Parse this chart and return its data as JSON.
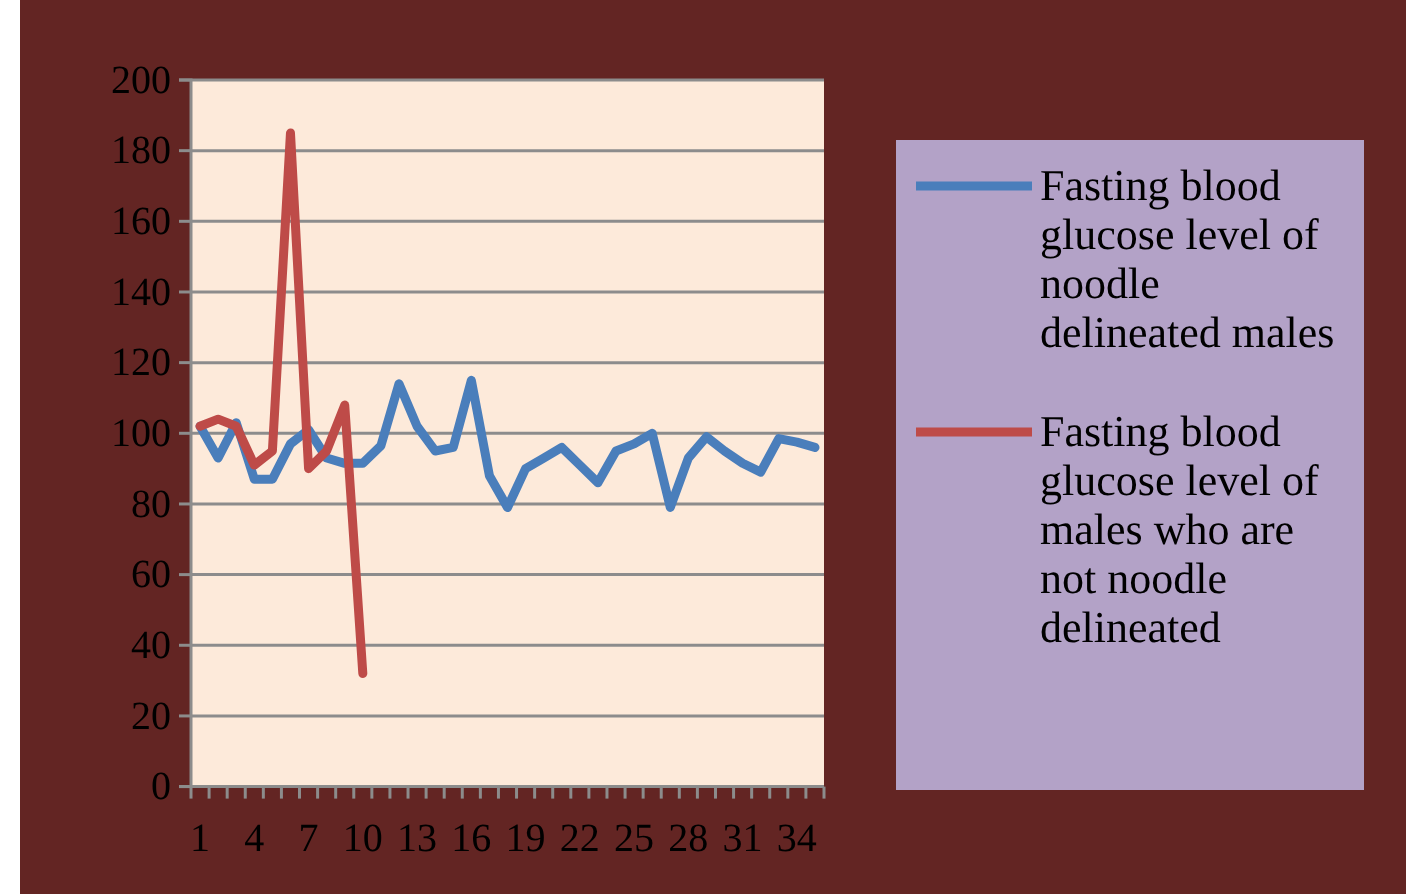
{
  "chart_data": {
    "type": "line",
    "categories": [
      "1",
      null,
      null,
      "4",
      null,
      null,
      "7",
      null,
      null,
      "10",
      null,
      null,
      "13",
      null,
      null,
      "16",
      null,
      null,
      "19",
      null,
      null,
      "22",
      null,
      null,
      "25",
      null,
      null,
      "28",
      null,
      null,
      "31",
      null,
      null,
      "34",
      null
    ],
    "series": [
      {
        "name": "Fasting blood glucose level of noodle delineated males",
        "color": "#4a7ebb",
        "values": [
          102,
          93,
          103,
          87,
          87,
          97,
          101,
          93,
          91.5,
          91.5,
          96.5,
          114,
          102,
          95,
          96,
          115,
          88,
          79,
          90,
          93,
          96,
          91,
          86,
          95,
          97,
          100,
          79,
          93,
          99,
          95,
          91.5,
          89,
          98.5,
          97.5,
          96
        ]
      },
      {
        "name": "Fasting blood glucose level of males who are not noodle delineated",
        "color": "#be4b48",
        "values": [
          102,
          104,
          102,
          91,
          95,
          185,
          90,
          95,
          108,
          32,
          null,
          null,
          null,
          null,
          null,
          null,
          null,
          null,
          null,
          null,
          null,
          null,
          null,
          null,
          null,
          null,
          null,
          null,
          null,
          null,
          null,
          null,
          null,
          null,
          null
        ]
      }
    ],
    "ylim": [
      0,
      200
    ],
    "yticks": [
      0,
      20,
      40,
      60,
      80,
      100,
      120,
      140,
      160,
      180,
      200
    ],
    "grid": "y",
    "legend": "right",
    "marker": "none",
    "line_style": "solid"
  }
}
